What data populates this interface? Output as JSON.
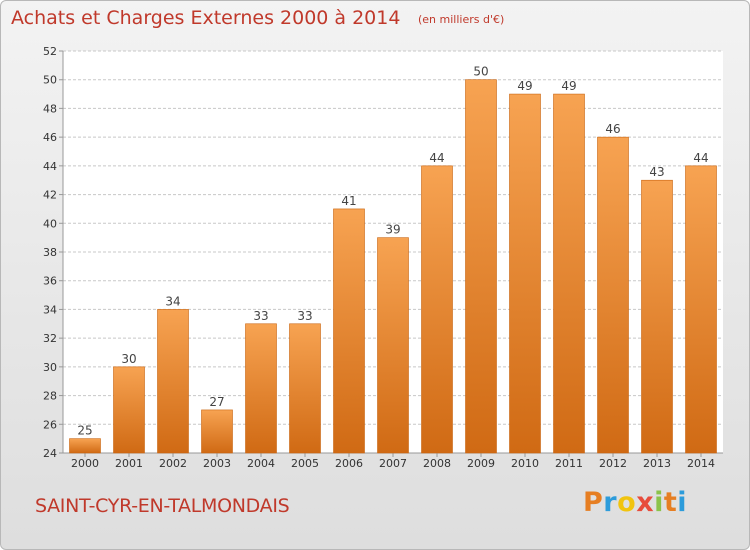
{
  "header": {
    "title": "Achats et Charges Externes 2000 à 2014",
    "unit": "(en milliers d'€)"
  },
  "footer": {
    "commune": "SAINT-CYR-EN-TALMONDAIS",
    "logo_letters": [
      "P",
      "r",
      "o",
      "x",
      "i",
      "t",
      "i"
    ],
    "logo_colors": [
      "#e67e22",
      "#2d9cdb",
      "#f1c40f",
      "#e74c3c",
      "#8bc34a",
      "#e67e22",
      "#2d9cdb"
    ]
  },
  "colors": {
    "bar_light": "#f7a352",
    "bar_dark": "#d06a14",
    "title": "#c0392b",
    "grid": "#c8c8c8",
    "axis_text": "#333333"
  },
  "chart_data": {
    "type": "bar",
    "title": "Achats et Charges Externes 2000 à 2014",
    "categories": [
      "2000",
      "2001",
      "2002",
      "2003",
      "2004",
      "2005",
      "2006",
      "2007",
      "2008",
      "2009",
      "2010",
      "2011",
      "2012",
      "2013",
      "2014"
    ],
    "values": [
      25,
      30,
      34,
      27,
      33,
      33,
      41,
      39,
      44,
      50,
      49,
      49,
      46,
      43,
      44
    ],
    "ylim": [
      24,
      52
    ],
    "yticks": [
      24,
      26,
      28,
      30,
      32,
      34,
      36,
      38,
      40,
      42,
      44,
      46,
      48,
      50,
      52
    ],
    "grid": true,
    "data_labels": true
  }
}
